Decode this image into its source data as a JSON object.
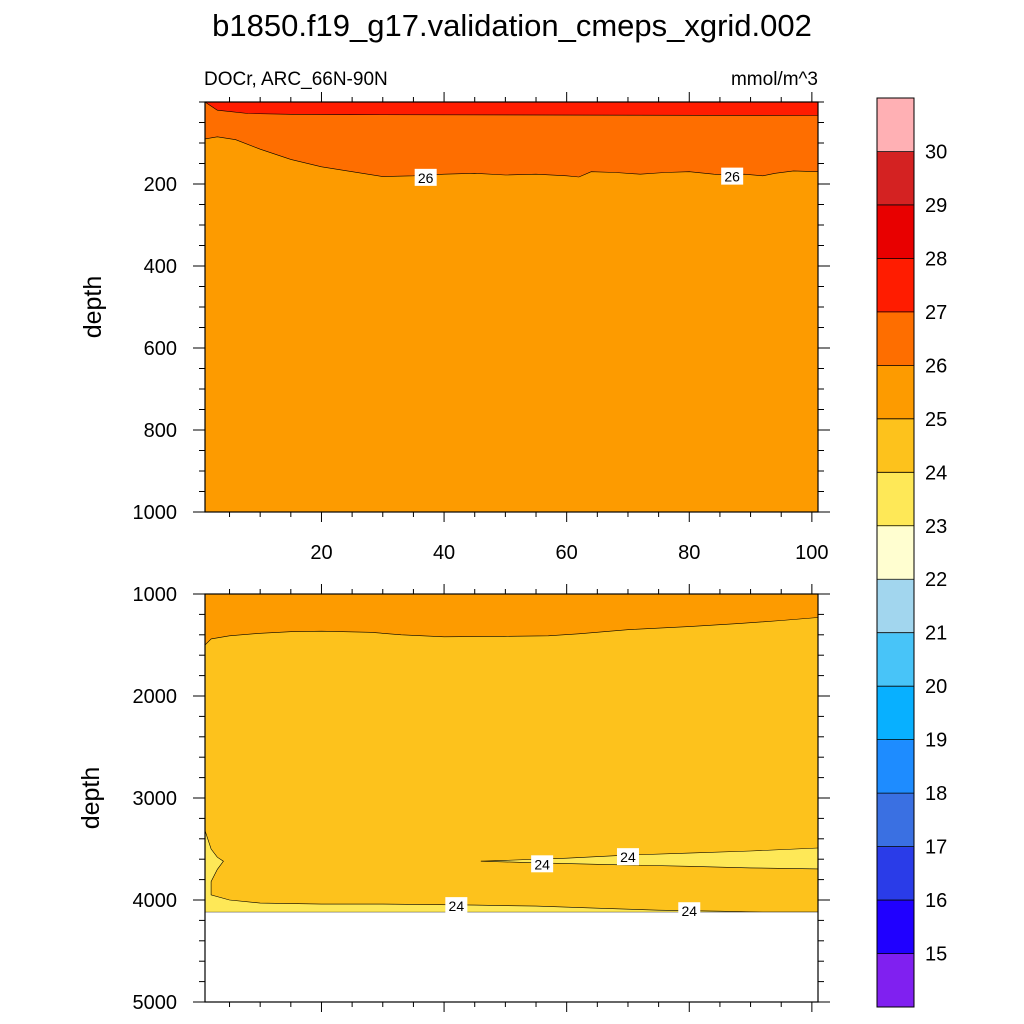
{
  "chart_data": {
    "type": "contour",
    "title": "b1850.f19_g17.validation_cmeps_xgrid.002",
    "variable": "DOCr",
    "region": "ARC_66N-90N",
    "subtitle_left": "DOCr, ARC_66N-90N",
    "units": "mmol/m^3",
    "x_range": [
      1,
      101
    ],
    "x_ticks": [
      "20",
      "40",
      "60",
      "80",
      "100"
    ],
    "colorbar": {
      "levels": [
        "15",
        "16",
        "17",
        "18",
        "19",
        "20",
        "21",
        "22",
        "23",
        "24",
        "25",
        "26",
        "27",
        "28",
        "29",
        "30"
      ],
      "colors": [
        "#8020f0",
        "#2000ff",
        "#2a3ce8",
        "#3a70e2",
        "#1e8cff",
        "#08b0ff",
        "#48c4f8",
        "#a2d6ee",
        "#fffed0",
        "#fee857",
        "#fdc21c",
        "#fd9b00",
        "#fe6e00",
        "#ff1c00",
        "#e80000",
        "#d42222",
        "#ffb0b4"
      ]
    },
    "panels": [
      {
        "name": "upper",
        "ylabel": "depth",
        "y_range": [
          0,
          1000
        ],
        "y_ticks": [
          "200",
          "400",
          "600",
          "800",
          "1000"
        ],
        "y_tick_values": [
          200,
          400,
          600,
          800,
          1000
        ],
        "contour_labels": [
          {
            "text": "26",
            "x": 37,
            "y": 185
          },
          {
            "text": "26",
            "x": 87,
            "y": 182
          }
        ],
        "regions": [
          {
            "name": "band-25-26",
            "color": "#fd9b00",
            "top": [
              [
                1,
                0
              ],
              [
                101,
                0
              ]
            ],
            "bottom": [
              [
                1,
                1000
              ],
              [
                101,
                1000
              ]
            ]
          },
          {
            "name": "band-26-27",
            "color": "#fe6e00",
            "top": [
              [
                1,
                0
              ],
              [
                101,
                0
              ]
            ],
            "bottom": [
              [
                1,
                90
              ],
              [
                3,
                85
              ],
              [
                6,
                92
              ],
              [
                10,
                115
              ],
              [
                15,
                140
              ],
              [
                20,
                158
              ],
              [
                25,
                170
              ],
              [
                30,
                182
              ],
              [
                35,
                180
              ],
              [
                40,
                176
              ],
              [
                45,
                174
              ],
              [
                50,
                178
              ],
              [
                55,
                176
              ],
              [
                60,
                180
              ],
              [
                62,
                183
              ],
              [
                64,
                170
              ],
              [
                68,
                172
              ],
              [
                72,
                176
              ],
              [
                76,
                172
              ],
              [
                80,
                170
              ],
              [
                84,
                176
              ],
              [
                86,
                178
              ],
              [
                89,
                176
              ],
              [
                92,
                180
              ],
              [
                94,
                174
              ],
              [
                97,
                168
              ],
              [
                101,
                170
              ]
            ]
          },
          {
            "name": "band-27-28",
            "color": "#ff1c00",
            "top": [
              [
                1,
                0
              ],
              [
                101,
                0
              ]
            ],
            "bottom": [
              [
                1,
                0
              ],
              [
                3,
                20
              ],
              [
                8,
                28
              ],
              [
                15,
                30
              ],
              [
                25,
                31
              ],
              [
                101,
                33
              ]
            ]
          }
        ]
      },
      {
        "name": "lower",
        "ylabel": "depth",
        "y_range": [
          1000,
          5000
        ],
        "y_ticks": [
          "1000",
          "2000",
          "3000",
          "4000",
          "5000"
        ],
        "y_tick_values": [
          1000,
          2000,
          3000,
          4000,
          5000
        ],
        "ocean_bottom": 4120,
        "contour_labels": [
          {
            "text": "24",
            "x": 56,
            "y": 3650
          },
          {
            "text": "24",
            "x": 70,
            "y": 3580
          },
          {
            "text": "24",
            "x": 42,
            "y": 4060
          },
          {
            "text": "24",
            "x": 80,
            "y": 4110
          }
        ],
        "regions": [
          {
            "name": "band-24-25",
            "color": "#fdc21c",
            "top": [
              [
                1,
                1000
              ],
              [
                101,
                1000
              ]
            ],
            "bottom": [
              [
                1,
                4120
              ],
              [
                101,
                4120
              ]
            ]
          },
          {
            "name": "band-25-26",
            "color": "#fd9b00",
            "top": [
              [
                1,
                1000
              ],
              [
                101,
                1000
              ]
            ],
            "bottom": [
              [
                1,
                1500
              ],
              [
                2,
                1440
              ],
              [
                5,
                1410
              ],
              [
                10,
                1385
              ],
              [
                15,
                1370
              ],
              [
                20,
                1365
              ],
              [
                28,
                1375
              ],
              [
                33,
                1400
              ],
              [
                40,
                1420
              ],
              [
                50,
                1415
              ],
              [
                57,
                1410
              ],
              [
                62,
                1390
              ],
              [
                70,
                1350
              ],
              [
                80,
                1320
              ],
              [
                88,
                1290
              ],
              [
                95,
                1260
              ],
              [
                101,
                1230
              ]
            ]
          },
          {
            "name": "band-23-24-west",
            "color": "#fee857",
            "top": [
              [
                1,
                3320
              ],
              [
                2,
                3500
              ],
              [
                3,
                3580
              ],
              [
                4,
                3620
              ],
              [
                3,
                3700
              ],
              [
                2,
                3820
              ],
              [
                2,
                3950
              ],
              [
                5,
                4000
              ],
              [
                10,
                4030
              ],
              [
                20,
                4040
              ],
              [
                30,
                4040
              ],
              [
                45,
                4050
              ],
              [
                55,
                4060
              ],
              [
                65,
                4080
              ],
              [
                75,
                4100
              ],
              [
                85,
                4110
              ],
              [
                92,
                4120
              ],
              [
                101,
                4120
              ]
            ],
            "bottom": [
              [
                1,
                4120
              ],
              [
                101,
                4120
              ]
            ]
          },
          {
            "name": "band-23-24-wedge",
            "color": "#fee857",
            "top": [
              [
                46,
                3620
              ],
              [
                60,
                3590
              ],
              [
                70,
                3560
              ],
              [
                80,
                3540
              ],
              [
                90,
                3520
              ],
              [
                101,
                3490
              ]
            ],
            "bottom": [
              [
                46,
                3620
              ],
              [
                55,
                3635
              ],
              [
                65,
                3650
              ],
              [
                80,
                3670
              ],
              [
                90,
                3685
              ],
              [
                101,
                3695
              ]
            ]
          }
        ]
      }
    ]
  }
}
